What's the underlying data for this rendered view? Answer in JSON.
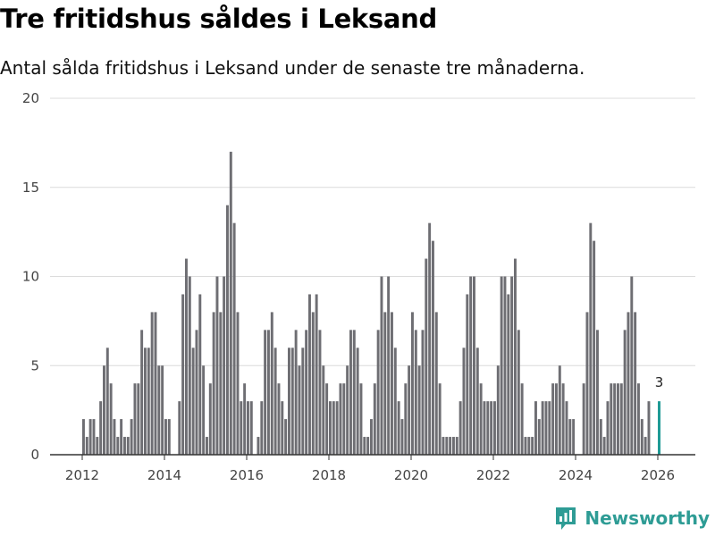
{
  "header": {
    "title": "Tre fritidshus såldes i Leksand",
    "subtitle": "Antal sålda fritidshus i Leksand under de senaste tre månaderna."
  },
  "brand": {
    "name": "Newsworthy",
    "icon": "newsworthy-logo-icon",
    "color": "#2e9c95"
  },
  "colors": {
    "bar": "#6e6e73",
    "highlight": "#1f9a95",
    "grid": "#dcdcdc",
    "axis": "#333333"
  },
  "chart_data": {
    "type": "bar",
    "title": "Tre fritidshus såldes i Leksand",
    "subtitle": "Antal sålda fritidshus i Leksand under de senaste tre månaderna.",
    "xlabel": "",
    "ylabel": "",
    "start": "2012-01",
    "frequency": "monthly",
    "ylim": [
      0,
      20
    ],
    "yticks": [
      "0",
      "5",
      "10",
      "15",
      "20"
    ],
    "xticks": [
      "2012",
      "2014",
      "2016",
      "2018",
      "2020",
      "2022",
      "2024",
      "2026"
    ],
    "grid": true,
    "values": [
      2,
      1,
      2,
      2,
      1,
      3,
      5,
      6,
      4,
      2,
      1,
      2,
      1,
      1,
      2,
      4,
      4,
      7,
      6,
      6,
      8,
      8,
      5,
      5,
      2,
      2,
      0,
      0,
      3,
      9,
      11,
      10,
      6,
      7,
      9,
      5,
      1,
      4,
      8,
      10,
      8,
      10,
      14,
      17,
      13,
      8,
      3,
      4,
      3,
      3,
      0,
      1,
      3,
      7,
      7,
      8,
      6,
      4,
      3,
      2,
      6,
      6,
      7,
      5,
      6,
      7,
      9,
      8,
      9,
      7,
      5,
      4,
      3,
      3,
      3,
      4,
      4,
      5,
      7,
      7,
      6,
      4,
      1,
      1,
      2,
      4,
      7,
      10,
      8,
      10,
      8,
      6,
      3,
      2,
      4,
      5,
      8,
      7,
      5,
      7,
      11,
      13,
      12,
      8,
      4,
      1,
      1,
      1,
      1,
      1,
      3,
      6,
      9,
      10,
      10,
      6,
      4,
      3,
      3,
      3,
      3,
      5,
      10,
      10,
      9,
      10,
      11,
      7,
      4,
      1,
      1,
      1,
      3,
      2,
      3,
      3,
      3,
      4,
      4,
      5,
      4,
      3,
      2,
      2,
      0,
      0,
      4,
      8,
      13,
      12,
      7,
      2,
      1,
      3,
      4,
      4,
      4,
      4,
      7,
      8,
      10,
      8,
      4,
      2,
      1,
      3
    ],
    "highlight": {
      "label": "3",
      "value": 3,
      "series": "Senaste tre månaderna"
    }
  }
}
